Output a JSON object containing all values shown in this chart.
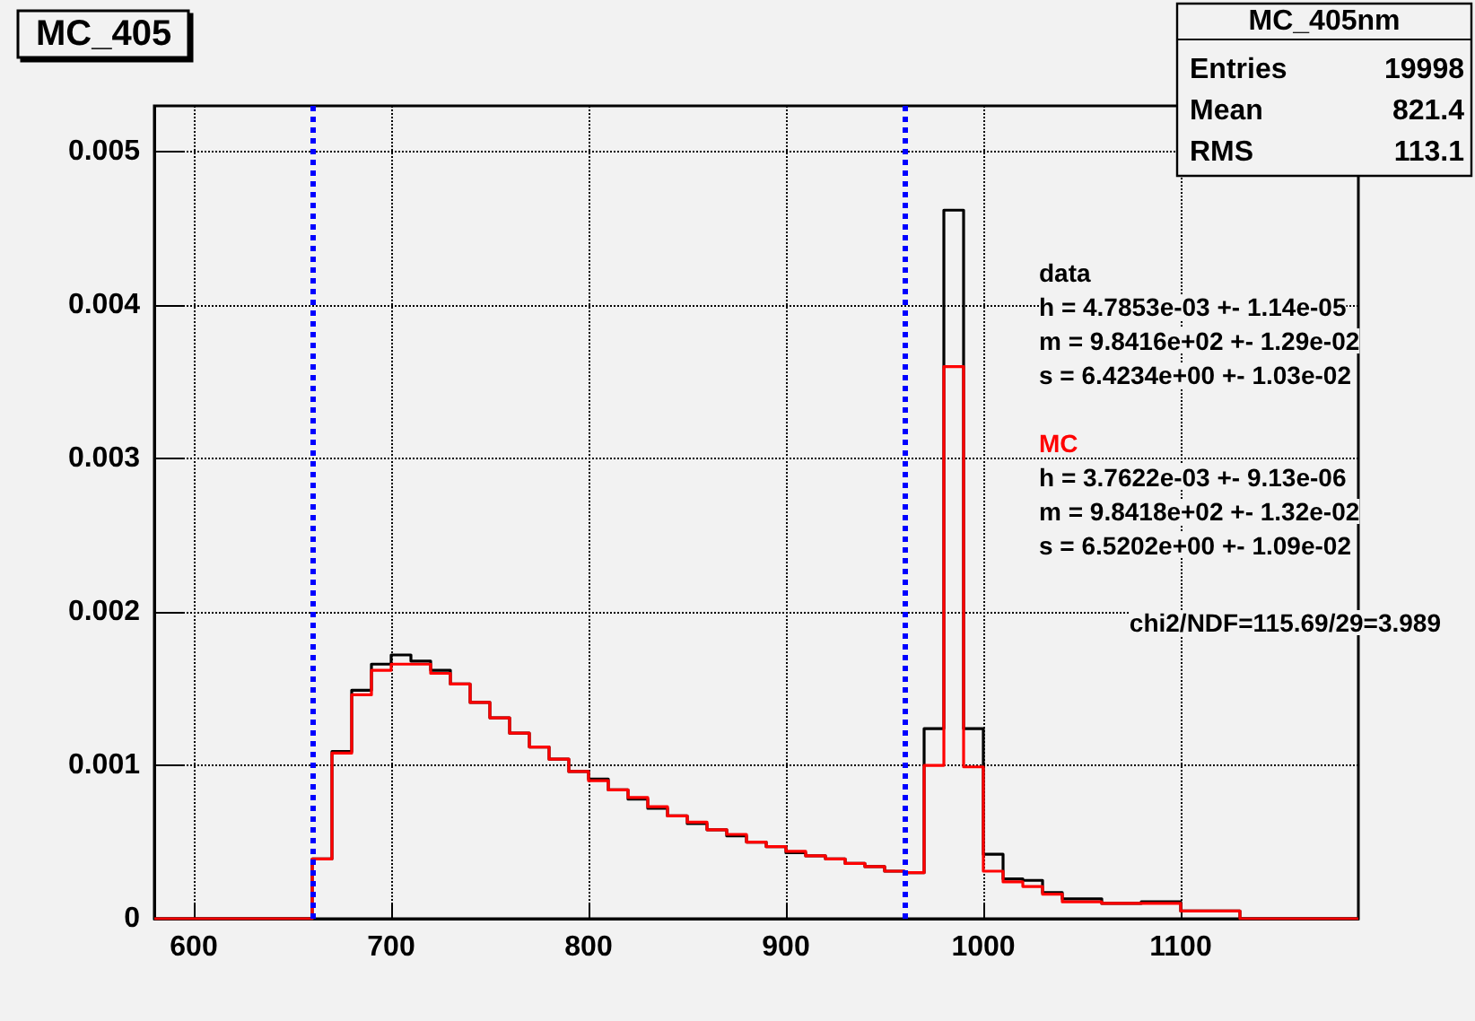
{
  "chart_data": {
    "type": "histogram",
    "title": "MC_405",
    "bins": [
      580,
      590,
      600,
      610,
      620,
      630,
      640,
      650,
      660,
      670,
      680,
      690,
      700,
      710,
      720,
      730,
      740,
      750,
      760,
      770,
      780,
      790,
      800,
      810,
      820,
      830,
      840,
      850,
      860,
      870,
      880,
      890,
      900,
      910,
      920,
      930,
      940,
      950,
      960,
      970,
      980,
      990,
      1000,
      1010,
      1020,
      1030,
      1040,
      1050,
      1060,
      1070,
      1080,
      1090,
      1100,
      1110,
      1120,
      1130,
      1140,
      1150,
      1160,
      1170,
      1180,
      1190
    ],
    "series": [
      {
        "name": "data",
        "color": "#000000",
        "values": [
          0,
          0,
          0,
          0,
          0,
          0,
          0,
          0,
          0.00039,
          0.00109,
          0.00149,
          0.00166,
          0.00172,
          0.00168,
          0.00162,
          0.00153,
          0.00141,
          0.00131,
          0.00121,
          0.00112,
          0.00104,
          0.00096,
          0.00091,
          0.00084,
          0.00078,
          0.00072,
          0.00067,
          0.00062,
          0.00058,
          0.00054,
          0.0005,
          0.00047,
          0.00043,
          0.00041,
          0.00039,
          0.00036,
          0.00034,
          0.00031,
          0.0003,
          0.00124,
          0.00462,
          0.00124,
          0.00042,
          0.00026,
          0.00025,
          0.00017,
          0.00013,
          0.00013,
          0.0001,
          0.0001,
          0.00011,
          0.00011,
          5e-05,
          5e-05,
          5e-05,
          0,
          0,
          0,
          0,
          0,
          0
        ]
      },
      {
        "name": "MC",
        "color": "#ff0000",
        "values": [
          0,
          0,
          0,
          0,
          0,
          0,
          0,
          0,
          0.00039,
          0.00108,
          0.00146,
          0.00162,
          0.00166,
          0.00166,
          0.0016,
          0.00153,
          0.00141,
          0.00131,
          0.00121,
          0.00112,
          0.00104,
          0.00096,
          0.0009,
          0.00084,
          0.00079,
          0.00073,
          0.00067,
          0.00063,
          0.00058,
          0.00055,
          0.0005,
          0.00047,
          0.00044,
          0.00041,
          0.00039,
          0.00036,
          0.00034,
          0.00031,
          0.0003,
          0.001,
          0.0036,
          0.00099,
          0.00031,
          0.00024,
          0.00021,
          0.00016,
          0.00011,
          0.00011,
          0.0001,
          0.0001,
          0.0001,
          0.0001,
          5e-05,
          5e-05,
          5e-05,
          0,
          0,
          0,
          0,
          0,
          0
        ]
      }
    ],
    "xlim": [
      580,
      1190
    ],
    "xticks": [
      600,
      700,
      800,
      900,
      1000,
      1100
    ],
    "ylim": [
      0,
      0.0053
    ],
    "yticks": [
      0,
      0.001,
      0.002,
      0.003,
      0.004,
      0.005
    ],
    "grid": true,
    "legend": false,
    "ref_lines": [
      {
        "axis": "x",
        "value": 660,
        "color": "#0000ff",
        "line_style": "dotted"
      },
      {
        "axis": "x",
        "value": 960,
        "color": "#0000ff",
        "line_style": "dotted"
      }
    ],
    "annotations": [
      "MC_405nm",
      "Entries 19998",
      "Mean 821.4",
      "RMS 113.1",
      "h = 4.7853e-03 +- 1.14e-05",
      "m = 9.8416e+02 +- 1.29e-02",
      "s = 6.4234e+00 +- 1.03e-02",
      "h = 3.7622e-03 +- 9.13e-06",
      "m = 9.8418e+02 +- 1.32e-02",
      "s = 6.5202e+00 +- 1.09e-02",
      "chi2/NDF=115.69/29=3.989"
    ]
  }
}
